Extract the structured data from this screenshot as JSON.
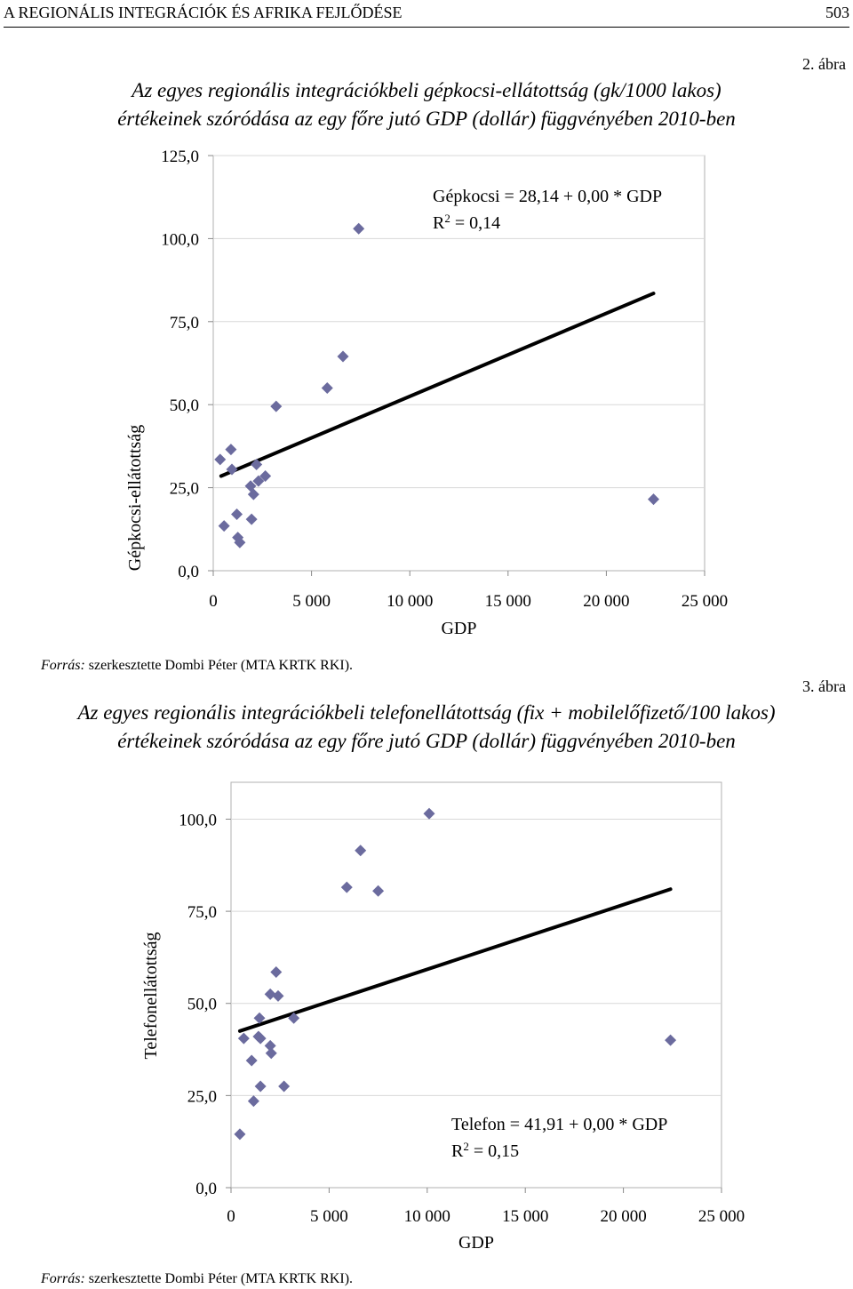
{
  "header": {
    "running_title": "A REGIONÁLIS INTEGRÁCIÓK ÉS AFRIKA FEJLŐDÉSE",
    "page_number": "503"
  },
  "figures": [
    {
      "label": "2. ábra",
      "title_line1": "Az egyes regionális integrációkbeli gépkocsi-ellátottság (gk/1000 lakos)",
      "title_line2": "értékeinek szóródása az egy főre jutó GDP (dollár) függvényében 2010-ben",
      "source_label": "Forrás:",
      "source_text": " szerkesztette Dombi Péter (MTA KRTK RKI)."
    },
    {
      "label": "3. ábra",
      "title_line1": "Az egyes regionális integrációkbeli telefonellátottság (fix + mobilelőfizető/100 lakos)",
      "title_line2": "értékeinek szóródása az egy főre jutó GDP (dollár) függvényében 2010-ben",
      "source_label": "Forrás:",
      "source_text": " szerkesztette Dombi Péter (MTA KRTK RKI)."
    }
  ],
  "chart_data": [
    {
      "type": "scatter",
      "xlabel": "GDP",
      "ylabel": "Gépkocsi-ellátottság",
      "xlim": [
        0,
        25000
      ],
      "ylim": [
        0,
        125
      ],
      "x_ticks": [
        "0",
        "5 000",
        "10 000",
        "15 000",
        "20 000",
        "25 000"
      ],
      "y_ticks": [
        "0,0",
        "25,0",
        "50,0",
        "75,0",
        "100,0",
        "125,0"
      ],
      "grid": "horizontal",
      "marker_color": "#6b6b9e",
      "equation": "Gépkocsi = 28,14 + 0,00 * GDP",
      "r2_prefix": "R",
      "r2_suffix": " = 0,14",
      "trend": {
        "x": [
          400,
          22400
        ],
        "y": [
          28.5,
          83.5
        ]
      },
      "points": [
        {
          "x": 350,
          "y": 33.5
        },
        {
          "x": 550,
          "y": 13.5
        },
        {
          "x": 900,
          "y": 36.5
        },
        {
          "x": 950,
          "y": 30.5
        },
        {
          "x": 1200,
          "y": 17
        },
        {
          "x": 1250,
          "y": 10
        },
        {
          "x": 1350,
          "y": 8.5
        },
        {
          "x": 1900,
          "y": 25.5
        },
        {
          "x": 1950,
          "y": 15.5
        },
        {
          "x": 2050,
          "y": 23
        },
        {
          "x": 2200,
          "y": 32
        },
        {
          "x": 2300,
          "y": 27
        },
        {
          "x": 2650,
          "y": 28.5
        },
        {
          "x": 3200,
          "y": 49.5
        },
        {
          "x": 5800,
          "y": 55
        },
        {
          "x": 6600,
          "y": 64.5
        },
        {
          "x": 7400,
          "y": 103
        },
        {
          "x": 22400,
          "y": 21.5
        }
      ]
    },
    {
      "type": "scatter",
      "xlabel": "GDP",
      "ylabel": "Telefonellátottság",
      "xlim": [
        0,
        25000
      ],
      "ylim": [
        0,
        110
      ],
      "x_ticks": [
        "0",
        "5 000",
        "10 000",
        "15 000",
        "20 000",
        "25 000"
      ],
      "y_ticks": [
        "0,0",
        "25,0",
        "50,0",
        "75,0",
        "100,0"
      ],
      "grid": "horizontal",
      "marker_color": "#6b6b9e",
      "equation": "Telefon = 41,91 + 0,00 * GDP",
      "r2_prefix": "R",
      "r2_suffix": " = 0,15",
      "trend": {
        "x": [
          450,
          22400
        ],
        "y": [
          42.5,
          81
        ]
      },
      "points": [
        {
          "x": 450,
          "y": 14.5
        },
        {
          "x": 650,
          "y": 40.5
        },
        {
          "x": 1050,
          "y": 34.5
        },
        {
          "x": 1150,
          "y": 23.5
        },
        {
          "x": 1400,
          "y": 41
        },
        {
          "x": 1450,
          "y": 46
        },
        {
          "x": 1500,
          "y": 40.5
        },
        {
          "x": 1500,
          "y": 27.5
        },
        {
          "x": 2000,
          "y": 52.5
        },
        {
          "x": 2000,
          "y": 38.5
        },
        {
          "x": 2050,
          "y": 36.5
        },
        {
          "x": 2300,
          "y": 58.5
        },
        {
          "x": 2400,
          "y": 52
        },
        {
          "x": 2700,
          "y": 27.5
        },
        {
          "x": 3200,
          "y": 46
        },
        {
          "x": 5900,
          "y": 81.5
        },
        {
          "x": 6600,
          "y": 91.5
        },
        {
          "x": 7500,
          "y": 80.5
        },
        {
          "x": 10100,
          "y": 101.5
        },
        {
          "x": 22400,
          "y": 40
        }
      ]
    }
  ]
}
